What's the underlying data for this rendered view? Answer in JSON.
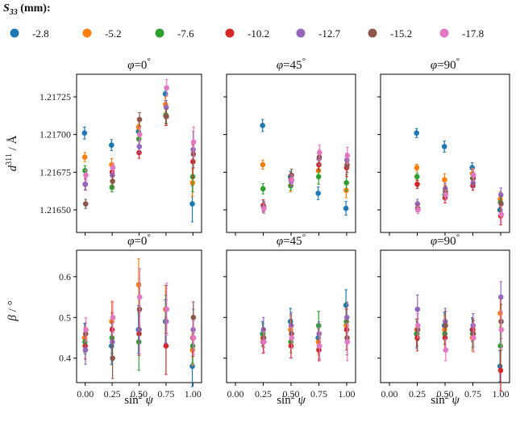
{
  "legend": {
    "title": "S33 (mm):",
    "title_main": "S",
    "title_sub": "33",
    "title_rest": " (mm):"
  },
  "chart_data": {
    "type": "scatter",
    "x": [
      0.0,
      0.25,
      0.5,
      0.75,
      1.0
    ],
    "x_tick_labels": [
      "0.00",
      "0.25",
      "0.50",
      "0.75",
      "1.00"
    ],
    "xlim": [
      -0.08,
      1.08
    ],
    "xlabel": "sin²ψ",
    "xlabel_main": "sin",
    "xlabel_sup": "2",
    "xlabel_var": " ψ",
    "series": [
      {
        "name": "-2.8",
        "color": "#1f77b4"
      },
      {
        "name": "-5.2",
        "color": "#ff7f0e"
      },
      {
        "name": "-7.6",
        "color": "#2ca02c"
      },
      {
        "name": "-10.2",
        "color": "#d62728"
      },
      {
        "name": "-12.7",
        "color": "#9467bd"
      },
      {
        "name": "-15.2",
        "color": "#8c564b"
      },
      {
        "name": "-17.8",
        "color": "#e377c2"
      }
    ],
    "rows": [
      {
        "ylabel": "d311 / Å",
        "ylabel_main": "d",
        "ylabel_sup": "311",
        "ylabel_rest": " / Å",
        "ylim": [
          1.21635,
          1.2174
        ],
        "yticks": [
          1.2165,
          1.21675,
          1.217,
          1.21725
        ],
        "ytick_labels": [
          "1.21650",
          "1.21675",
          "1.21700",
          "1.21725"
        ],
        "panels": [
          {
            "title": "φ = 0°",
            "title_sym": "φ",
            "title_val": "=0",
            "title_deg": "°",
            "x": [
              0.0,
              0.25,
              0.5,
              0.75,
              1.0
            ],
            "values": [
              [
                1.21701,
                1.21693,
                1.21702,
                1.21727,
                1.21654
              ],
              [
                1.21685,
                1.2168,
                1.21705,
                1.2172,
                1.21668
              ],
              [
                1.21676,
                1.21665,
                1.21697,
                1.21713,
                1.21672
              ],
              [
                1.21667,
                1.21675,
                1.21688,
                1.21712,
                1.21682
              ],
              [
                1.21667,
                1.21673,
                1.21692,
                1.21718,
                1.2169
              ],
              [
                1.21654,
                1.21669,
                1.2171,
                1.21712,
                1.21687
              ],
              [
                1.21673,
                1.21678,
                1.217,
                1.21731,
                1.21695
              ]
            ],
            "errors": [
              4,
              4,
              5,
              6,
              12
            ]
          },
          {
            "title": "φ = 45°",
            "title_sym": "φ",
            "title_val": "=45",
            "title_deg": "°",
            "x": [
              0.25,
              0.5,
              0.75,
              1.0
            ],
            "values": [
              [
                1.21706,
                1.21672,
                1.21661,
                1.21651
              ],
              [
                1.2168,
                1.21666,
                1.21676,
                1.21663
              ],
              [
                1.21664,
                1.21666,
                1.21672,
                1.21668
              ],
              [
                1.21653,
                1.2167,
                1.2168,
                1.21678
              ],
              [
                1.21652,
                1.21669,
                1.21684,
                1.21683
              ],
              [
                1.21652,
                1.21673,
                1.21685,
                1.2168
              ],
              [
                1.21651,
                1.2167,
                1.21688,
                1.21686
              ]
            ],
            "errors": [
              4,
              4,
              5,
              6
            ]
          },
          {
            "title": "φ = 90°",
            "title_sym": "φ",
            "title_val": "=90",
            "title_deg": "°",
            "x": [
              0.25,
              0.5,
              0.75,
              1.0
            ],
            "values": [
              [
                1.21701,
                1.21692,
                1.21678,
                1.2165
              ],
              [
                1.21678,
                1.2167,
                1.21674,
                1.21657
              ],
              [
                1.21672,
                1.2166,
                1.21671,
                1.21655
              ],
              [
                1.21667,
                1.21658,
                1.21666,
                1.21646
              ],
              [
                1.21654,
                1.21664,
                1.21668,
                1.2166
              ],
              [
                1.21651,
                1.21662,
                1.21671,
                1.21654
              ],
              [
                1.2165,
                1.2166,
                1.21673,
                1.21647
              ]
            ],
            "errors": [
              3,
              4,
              4,
              6
            ]
          }
        ]
      },
      {
        "ylabel": "β / °",
        "ylabel_main": "β",
        "ylabel_sup": "",
        "ylabel_rest": " / °",
        "ylim": [
          0.34,
          0.665
        ],
        "yticks": [
          0.4,
          0.5,
          0.6
        ],
        "ytick_labels": [
          "0.4",
          "0.5",
          "0.6"
        ],
        "panels": [
          {
            "title": "φ = 0°",
            "title_sym": "φ",
            "title_val": "=0",
            "title_deg": "°",
            "x": [
              0.0,
              0.25,
              0.5,
              0.75,
              1.0
            ],
            "values": [
              [
                0.45,
                0.43,
                0.47,
                0.49,
                0.38
              ],
              [
                0.45,
                0.49,
                0.58,
                0.52,
                0.42
              ],
              [
                0.44,
                0.45,
                0.44,
                0.49,
                0.43
              ],
              [
                0.43,
                0.47,
                0.46,
                0.43,
                0.45
              ],
              [
                0.42,
                0.44,
                0.47,
                0.49,
                0.47
              ],
              [
                0.46,
                0.4,
                0.52,
                0.52,
                0.5
              ],
              [
                0.47,
                0.5,
                0.55,
                0.52,
                0.45
              ]
            ],
            "errors": [
              0.035,
              0.05,
              0.07,
              0.07,
              0.05
            ]
          },
          {
            "title": "φ = 45°",
            "title_sym": "φ",
            "title_val": "=45",
            "title_deg": "°",
            "x": [
              0.25,
              0.5,
              0.75,
              1.0
            ],
            "values": [
              [
                0.46,
                0.49,
                0.45,
                0.53
              ],
              [
                0.45,
                0.47,
                0.44,
                0.48
              ],
              [
                0.46,
                0.44,
                0.48,
                0.49
              ],
              [
                0.44,
                0.43,
                0.42,
                0.47
              ],
              [
                0.47,
                0.48,
                0.46,
                0.5
              ],
              [
                0.45,
                0.46,
                0.43,
                0.45
              ],
              [
                0.44,
                0.45,
                0.43,
                0.44
              ]
            ],
            "errors": [
              0.03,
              0.035,
              0.035,
              0.05
            ]
          },
          {
            "title": "φ = 90°",
            "title_sym": "φ",
            "title_val": "=90",
            "title_deg": "°",
            "x": [
              0.25,
              0.5,
              0.75,
              1.0
            ],
            "values": [
              [
                0.46,
                0.48,
                0.47,
                0.38
              ],
              [
                0.47,
                0.47,
                0.45,
                0.51
              ],
              [
                0.46,
                0.46,
                0.46,
                0.43
              ],
              [
                0.45,
                0.45,
                0.47,
                0.37
              ],
              [
                0.52,
                0.49,
                0.48,
                0.55
              ],
              [
                0.47,
                0.48,
                0.46,
                0.49
              ],
              [
                0.48,
                0.42,
                0.45,
                0.47
              ]
            ],
            "errors": [
              0.035,
              0.035,
              0.035,
              0.05
            ]
          }
        ]
      }
    ]
  }
}
